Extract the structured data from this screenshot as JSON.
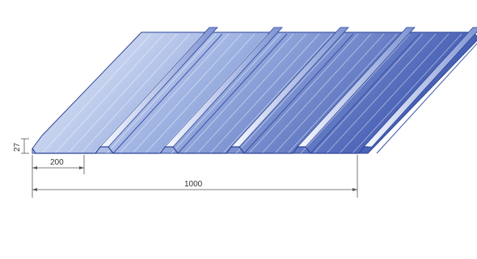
{
  "dimensions": {
    "height_label": "27",
    "pitch_label": "200",
    "width_label": "1000"
  },
  "colors": {
    "sheet_dark": "#3f58b0",
    "sheet_mid": "#8fa6dc",
    "sheet_light": "#eef2fb",
    "edge": "#2e4598",
    "dim_line": "#555555"
  }
}
